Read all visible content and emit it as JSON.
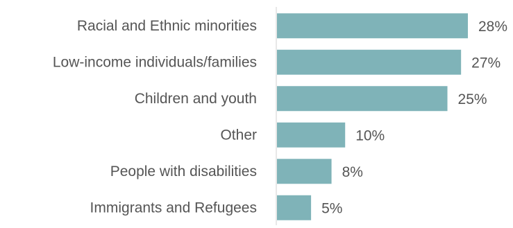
{
  "chart_data": {
    "type": "bar",
    "orientation": "horizontal",
    "categories": [
      "Racial and Ethnic minorities",
      "Low-income individuals/families",
      "Children and youth",
      "Other",
      "People with disabilities",
      "Immigrants and Refugees"
    ],
    "values": [
      28,
      27,
      25,
      10,
      8,
      5
    ],
    "value_labels": [
      "28%",
      "27%",
      "25%",
      "10%",
      "8%",
      "5%"
    ],
    "unit": "%",
    "bar_color": "#7FB3B8",
    "label_color": "#555555",
    "axis_color": "#D0D0D0",
    "grid": false,
    "legend": "none"
  }
}
